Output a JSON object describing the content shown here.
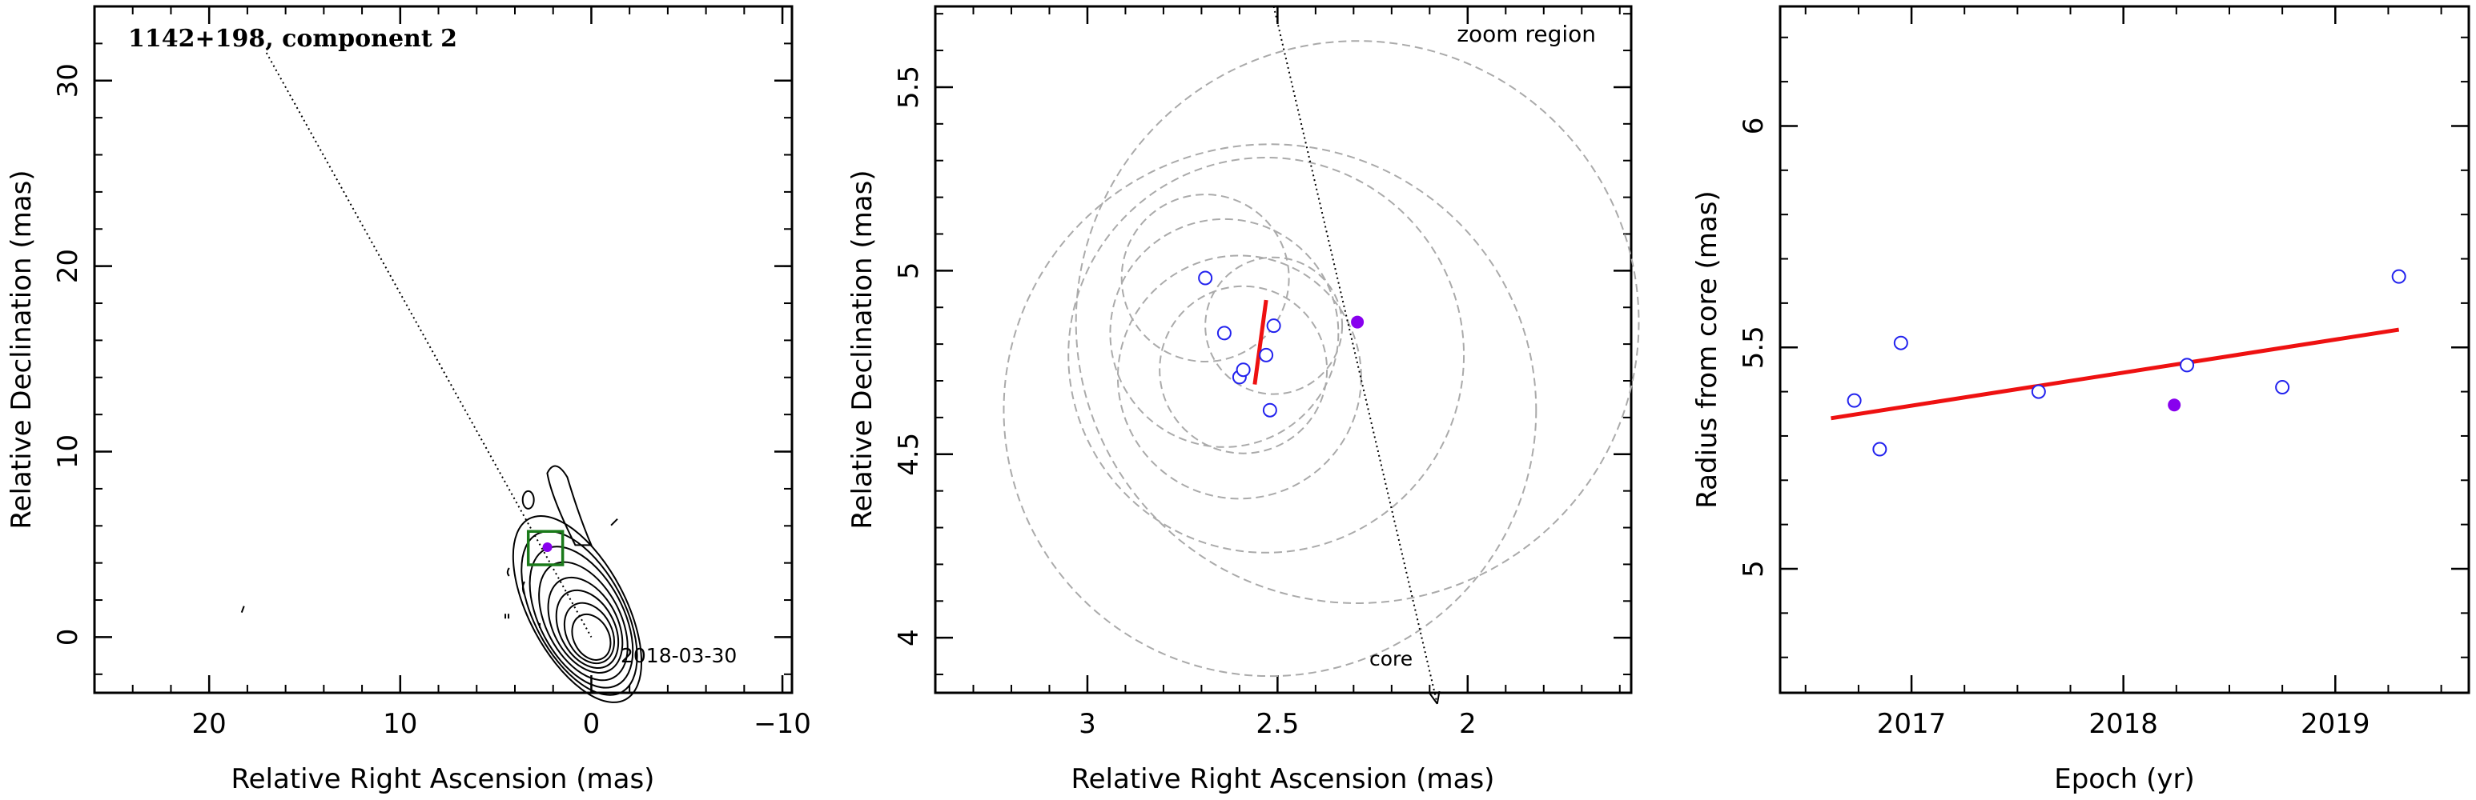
{
  "chart_data": [
    {
      "type": "contour-map",
      "title": "1142+198, component 2",
      "annotation": "2018-03-30",
      "xlabel": "Relative Right Ascension (mas)",
      "ylabel": "Relative Declination (mas)",
      "xlim": [
        26,
        -10.5
      ],
      "ylim": [
        -3,
        34
      ],
      "xticks": [
        20,
        10,
        0,
        -10
      ],
      "yticks": [
        0,
        10,
        20,
        30
      ],
      "jet_direction_line": [
        [
          17.0,
          31.5
        ],
        [
          0,
          0
        ]
      ],
      "zoom_box": {
        "ra": [
          3.3,
          1.5
        ],
        "dec": [
          3.9,
          5.7
        ]
      },
      "component": {
        "ra": 2.3,
        "dec": 4.85
      },
      "colors": {
        "contour": "#000000",
        "box": "#1a7a1a",
        "component": "#8800ee"
      }
    },
    {
      "type": "scatter",
      "title": "",
      "annotation_top": "zoom region",
      "annotation_core": "core",
      "xlabel": "Relative Right Ascension (mas)",
      "ylabel": "Relative Declination (mas)",
      "xlim": [
        3.4,
        1.57
      ],
      "ylim": [
        3.85,
        5.72
      ],
      "xticks": [
        3,
        2.5,
        2
      ],
      "yticks": [
        4,
        4.5,
        5,
        5.5
      ],
      "points_open": [
        {
          "x": 2.69,
          "y": 4.98
        },
        {
          "x": 2.64,
          "y": 4.83
        },
        {
          "x": 2.6,
          "y": 4.71
        },
        {
          "x": 2.59,
          "y": 4.73
        },
        {
          "x": 2.53,
          "y": 4.77
        },
        {
          "x": 2.51,
          "y": 4.85
        },
        {
          "x": 2.52,
          "y": 4.62
        }
      ],
      "point_filled": {
        "x": 2.29,
        "y": 4.86
      },
      "motion_vector": [
        [
          2.53,
          4.92
        ],
        [
          2.56,
          4.69
        ]
      ],
      "core_line": [
        [
          2.51,
          5.72
        ],
        [
          2.08,
          3.82
        ]
      ],
      "error_circles": [
        {
          "x": 2.69,
          "y": 4.98,
          "r": 0.22
        },
        {
          "x": 2.64,
          "y": 4.83,
          "r": 0.3
        },
        {
          "x": 2.6,
          "y": 4.71,
          "r": 0.32
        },
        {
          "x": 2.59,
          "y": 4.73,
          "r": 0.22
        },
        {
          "x": 2.53,
          "y": 4.77,
          "r": 0.52
        },
        {
          "x": 2.51,
          "y": 4.85,
          "r": 0.18
        },
        {
          "x": 2.52,
          "y": 4.62,
          "r": 0.7
        },
        {
          "x": 2.29,
          "y": 4.86,
          "r": 0.74
        }
      ],
      "colors": {
        "points": "#2222ee",
        "filled": "#8800ee",
        "vector": "#ee1111",
        "circles": "#aaaaaa"
      }
    },
    {
      "type": "scatter",
      "title": "",
      "xlabel": "Epoch (yr)",
      "ylabel": "Radius from core (mas)",
      "xlim": [
        2016.38,
        2019.63
      ],
      "ylim": [
        4.72,
        6.27
      ],
      "xticks": [
        2017,
        2018,
        2019
      ],
      "yticks": [
        5,
        5.5,
        6
      ],
      "points_open": [
        {
          "x": 2016.73,
          "y": 5.38
        },
        {
          "x": 2016.85,
          "y": 5.27
        },
        {
          "x": 2016.95,
          "y": 5.51
        },
        {
          "x": 2017.6,
          "y": 5.4
        },
        {
          "x": 2018.3,
          "y": 5.46
        },
        {
          "x": 2018.75,
          "y": 5.41
        },
        {
          "x": 2019.3,
          "y": 5.66
        }
      ],
      "point_filled": {
        "x": 2018.24,
        "y": 5.37
      },
      "fit_line": [
        [
          2016.62,
          5.34
        ],
        [
          2019.3,
          5.54
        ]
      ],
      "colors": {
        "points": "#2222ee",
        "filled": "#8800ee",
        "fit": "#ee1111"
      }
    }
  ]
}
